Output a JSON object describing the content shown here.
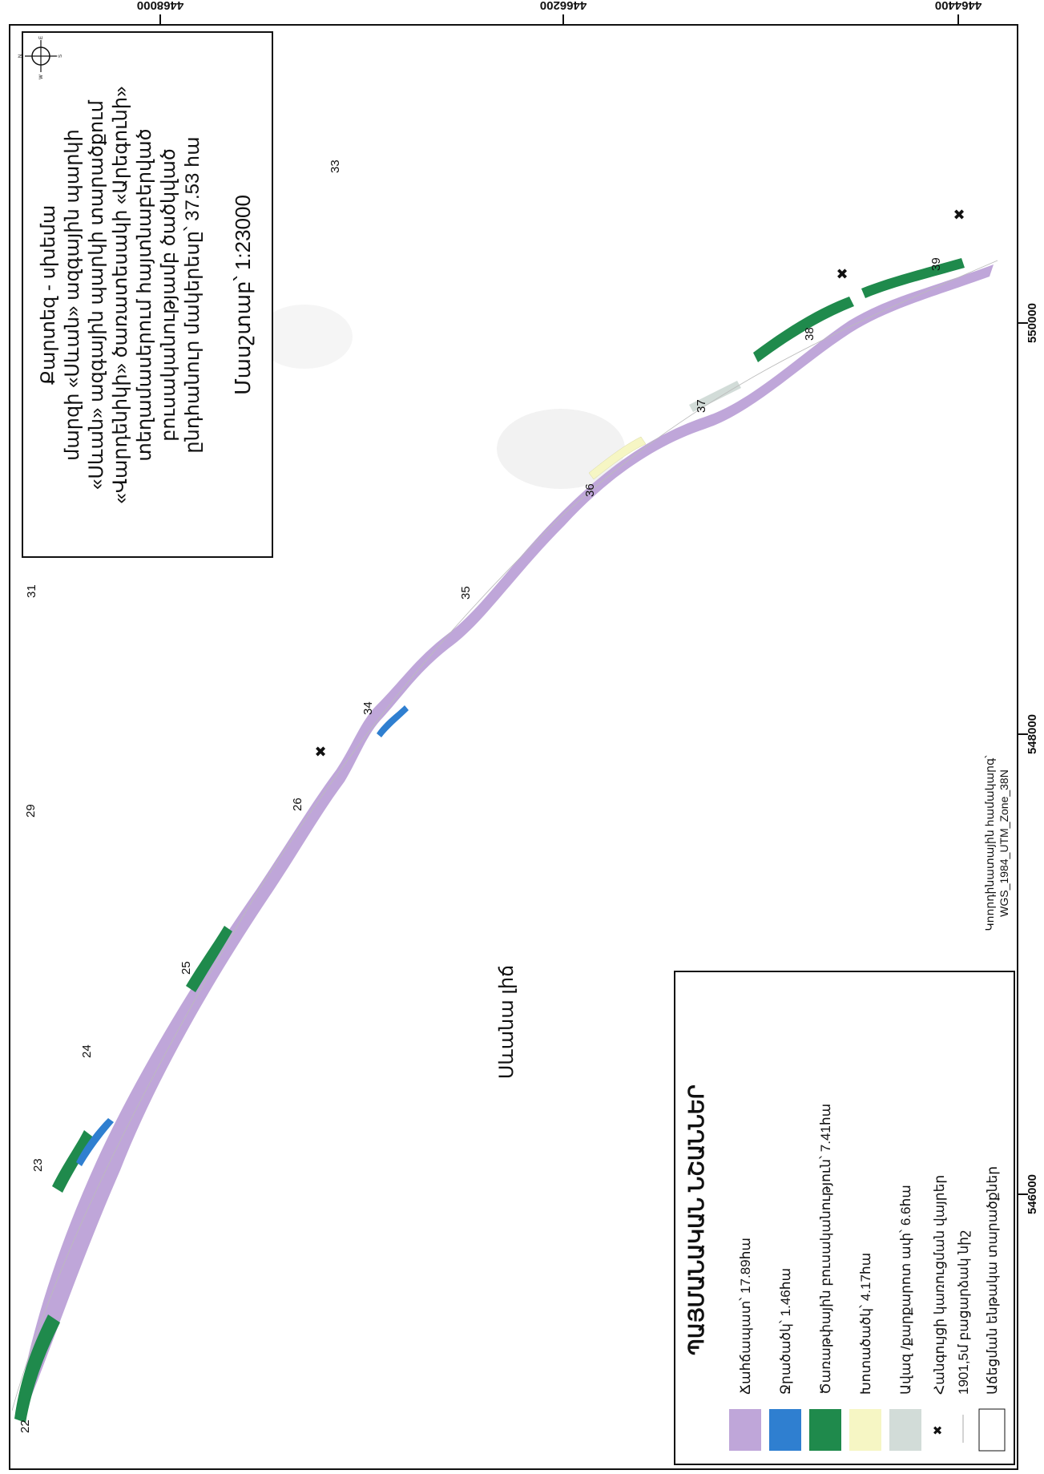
{
  "title": {
    "line1": "Քարտեզ - սխեմա",
    "line2": "մարզի «Սևան» ազգային պարկի",
    "line3": "«Սևան» ազգային պարկի տարածքում",
    "line4": "«Վարդենիկի» ծառատեսակի «Արեգունի»",
    "line5": "տեղամասերում հայտնաբերված",
    "line6": "բուսականությամբ ծածկված",
    "line7": "ընդհանուր մակերեսը՝ 37.53 հա"
  },
  "scale": {
    "label": "Մասշտաբ՝ 1:23000"
  },
  "lake_label": "Սևանա լիճ",
  "projection": {
    "line1": "Կոորդինատային համակարգ՝",
    "line2": "WGS_1984_UTM_Zone_38N"
  },
  "grid": {
    "northing": [
      "4468000",
      "4466200",
      "4464400"
    ],
    "easting": [
      "546000",
      "548000",
      "550000"
    ]
  },
  "plot_numbers": [
    "22",
    "23",
    "24",
    "25",
    "26",
    "29",
    "31",
    "33",
    "34",
    "35",
    "36",
    "37",
    "38",
    "39"
  ],
  "legend": {
    "title": "ՊԱՅՄԱՆԱԿԱՆ ՆՇԱՆՆԵՐ",
    "items": [
      {
        "label": "Ճահճապատ՝ 17.89հա",
        "color": "#bfa6d9"
      },
      {
        "label": "Ջրածածկ՝ 1.46հա",
        "color": "#2f7fd0"
      },
      {
        "label": "Ծառաթփային բուսականություն՝ 7.41հա",
        "color": "#1f8a4c"
      },
      {
        "label": "Խոտածածկ՝ 4.17հա",
        "color": "#f6f6c4"
      },
      {
        "label": "Ավազ /քարքարոտ ափ՝ 6.6հա",
        "color": "#d2dcd8"
      },
      {
        "label": "Հանգույցի կառուցման վայրեր",
        "symbol": "x-mark"
      },
      {
        "label": "1901,5մ բացարձակ նիշ",
        "symbol": "line"
      },
      {
        "label": "Աճեցման ենթակա տարածքներ",
        "symbol": "empty-box"
      }
    ]
  },
  "north_arrow": {
    "letters": [
      "N",
      "E",
      "S",
      "W"
    ]
  }
}
